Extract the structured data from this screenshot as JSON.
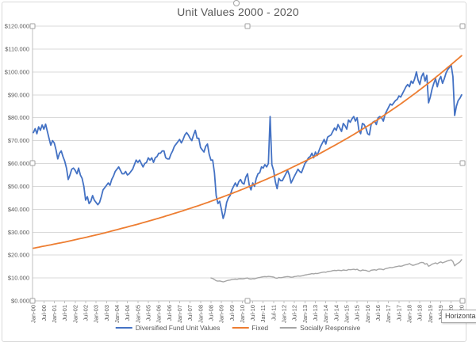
{
  "title": "Unit Values 2000 - 2020",
  "tooltip_text": "Horizontal",
  "colors": {
    "diversified": "#4472c4",
    "fixed": "#ed7d31",
    "socially_responsive": "#a5a5a5",
    "gridline": "#d9d9d9",
    "axis_line": "#bfbfbf",
    "axis_text": "#595959",
    "title_text": "#595959"
  },
  "y_axis": {
    "tick_labels": [
      "$120.000",
      "$110.000",
      "$100.000",
      "$90.000",
      "$80.000",
      "$70.000",
      "$60.000",
      "$50.000",
      "$40.000",
      "$30.000",
      "$20.000",
      "$10.000",
      "$0.000"
    ],
    "min": 0,
    "max": 120,
    "step": 10
  },
  "x_axis": {
    "tick_labels": [
      "Jan-00",
      "Jul-00",
      "Jan-01",
      "Jul-01",
      "Jan-02",
      "Jul-02",
      "Jan-03",
      "Jul-03",
      "Jan-04",
      "Jul-04",
      "Jan-05",
      "Jul-05",
      "Jan-06",
      "Jul-06",
      "Jan-07",
      "Jul-07",
      "Jan-08",
      "Jul-08",
      "Jan-09",
      "Jul-09",
      "Jan-10",
      "Jul-10",
      "Jan-11",
      "Jul-11",
      "Jan-12",
      "Jul-12",
      "Jan-13",
      "Jul-13",
      "Jan-14",
      "Jul-14",
      "Jan-15",
      "Jul-15",
      "Jan-16",
      "Jul-16",
      "Jan-17",
      "Jul-17",
      "Jan-18",
      "Jul-18",
      "Jan-19",
      "Jul-19",
      "Jan-20",
      "Jul-20"
    ],
    "months_per_tick": 6,
    "total_months": 247
  },
  "legend": [
    {
      "label": "Diversified Fund Unit Values",
      "color": "#4472c4"
    },
    {
      "label": "Fixed",
      "color": "#ed7d31"
    },
    {
      "label": "Socially Responsive",
      "color": "#a5a5a5"
    }
  ],
  "chart_data": {
    "type": "line",
    "x_unit": "month index, 0 = Jan-2000, 246 = Jul-2020",
    "title": "Unit Values 2000 - 2020",
    "ylim": [
      0,
      120
    ],
    "grid": true,
    "legend_position": "bottom",
    "series": [
      {
        "name": "Diversified Fund Unit Values",
        "color": "#4472c4",
        "start_month": 0,
        "resolution_months": 1,
        "values": [
          73.5,
          75.2,
          73.0,
          76.0,
          74.5,
          76.8,
          75.0,
          77.2,
          74.0,
          71.0,
          68.0,
          70.0,
          69.0,
          66.0,
          62.0,
          64.5,
          65.5,
          63.0,
          61.0,
          58.0,
          53.0,
          55.0,
          57.5,
          58.0,
          57.0,
          55.5,
          58.0,
          55.0,
          53.5,
          50.0,
          44.0,
          45.5,
          42.5,
          43.5,
          46.0,
          44.0,
          43.0,
          42.0,
          43.0,
          45.5,
          48.5,
          49.5,
          50.5,
          51.5,
          50.5,
          53.0,
          54.5,
          56.5,
          57.5,
          58.5,
          57.0,
          55.5,
          55.5,
          56.5,
          55.0,
          55.5,
          56.5,
          57.5,
          59.5,
          61.5,
          60.5,
          61.5,
          60.0,
          58.5,
          60.0,
          60.5,
          62.5,
          61.5,
          62.5,
          60.5,
          62.5,
          63.0,
          64.5,
          64.5,
          65.5,
          65.5,
          62.5,
          62.0,
          62.0,
          64.0,
          65.5,
          67.5,
          68.5,
          69.5,
          70.5,
          69.0,
          70.5,
          72.5,
          73.5,
          72.5,
          71.0,
          70.0,
          72.5,
          74.5,
          71.0,
          71.0,
          67.0,
          66.0,
          65.0,
          67.5,
          68.5,
          64.0,
          61.5,
          61.5,
          56.0,
          46.0,
          42.5,
          43.5,
          40.0,
          36.0,
          38.5,
          43.0,
          45.0,
          46.0,
          48.5,
          50.0,
          51.5,
          50.0,
          52.0,
          53.0,
          51.5,
          51.0,
          54.0,
          55.5,
          50.5,
          48.5,
          51.5,
          50.0,
          53.5,
          55.5,
          56.0,
          58.5,
          58.0,
          59.5,
          58.5,
          60.0,
          80.5,
          59.5,
          57.0,
          52.0,
          49.0,
          53.5,
          52.5,
          52.5,
          54.0,
          55.5,
          57.0,
          55.0,
          51.5,
          53.0,
          54.5,
          56.0,
          57.5,
          56.5,
          56.0,
          58.0,
          60.0,
          61.0,
          62.5,
          63.0,
          64.5,
          62.5,
          65.0,
          63.5,
          65.5,
          67.5,
          69.0,
          70.5,
          68.5,
          71.5,
          72.0,
          72.5,
          74.0,
          75.5,
          74.5,
          77.0,
          75.5,
          74.0,
          77.5,
          76.5,
          75.0,
          79.0,
          78.0,
          79.5,
          80.5,
          78.5,
          80.0,
          74.5,
          73.0,
          77.5,
          77.0,
          75.5,
          73.0,
          72.5,
          77.0,
          78.0,
          78.5,
          77.0,
          80.0,
          80.5,
          80.0,
          78.5,
          81.5,
          83.0,
          84.5,
          86.0,
          85.5,
          86.5,
          87.5,
          88.0,
          89.5,
          89.0,
          90.5,
          92.0,
          93.5,
          94.5,
          93.5,
          96.0,
          95.0,
          97.0,
          100.0,
          96.5,
          94.5,
          98.0,
          99.5,
          96.0,
          98.5,
          86.5,
          89.0,
          92.5,
          95.0,
          97.0,
          93.5,
          96.5,
          98.0,
          95.0,
          97.0,
          99.5,
          101.0,
          102.0,
          103.0,
          98.0,
          81.0,
          85.0,
          87.5,
          88.5,
          90.0
        ]
      },
      {
        "name": "Fixed",
        "color": "#ed7d31",
        "start_month": 0,
        "resolution_months": 6,
        "values": [
          23.0,
          23.9,
          24.8,
          25.7,
          26.7,
          27.7,
          28.8,
          29.9,
          31.1,
          32.3,
          33.5,
          34.8,
          36.1,
          37.5,
          38.9,
          40.4,
          41.9,
          43.5,
          45.2,
          46.9,
          48.7,
          50.6,
          52.5,
          54.5,
          56.6,
          58.8,
          61.0,
          63.3,
          65.8,
          68.3,
          70.9,
          73.6,
          76.4,
          79.3,
          82.4,
          85.5,
          88.8,
          92.2,
          95.7,
          99.4,
          103.2,
          107.1
        ]
      },
      {
        "name": "Socially Responsive",
        "color": "#a5a5a5",
        "start_month": 102,
        "resolution_months": 1,
        "values": [
          10.0,
          9.8,
          9.3,
          8.8,
          8.6,
          8.7,
          8.5,
          8.3,
          8.5,
          8.8,
          9.0,
          9.1,
          9.3,
          9.4,
          9.5,
          9.4,
          9.6,
          9.7,
          9.6,
          9.7,
          9.9,
          10.0,
          9.6,
          9.5,
          9.7,
          9.6,
          9.9,
          10.1,
          10.2,
          10.4,
          10.5,
          10.6,
          10.5,
          10.7,
          10.6,
          10.5,
          10.4,
          10.0,
          9.9,
          10.2,
          10.1,
          10.2,
          10.4,
          10.5,
          10.6,
          10.5,
          10.3,
          10.4,
          10.6,
          10.7,
          10.9,
          10.8,
          10.9,
          11.1,
          11.3,
          11.4,
          11.6,
          11.7,
          11.9,
          11.8,
          12.0,
          11.9,
          12.1,
          12.3,
          12.5,
          12.6,
          12.5,
          12.8,
          12.9,
          13.0,
          13.2,
          13.3,
          13.2,
          13.4,
          13.3,
          13.2,
          13.5,
          13.4,
          13.3,
          13.7,
          13.6,
          13.7,
          13.8,
          13.6,
          13.8,
          13.3,
          13.1,
          13.5,
          13.4,
          13.3,
          13.0,
          12.9,
          13.4,
          13.5,
          13.6,
          13.4,
          13.8,
          13.9,
          13.8,
          13.6,
          14.0,
          14.2,
          14.4,
          14.6,
          14.5,
          14.7,
          14.9,
          15.0,
          15.2,
          15.1,
          15.3,
          15.6,
          15.8,
          15.9,
          16.3,
          15.8,
          15.5,
          15.7,
          16.0,
          16.2,
          16.6,
          16.8,
          16.7,
          16.0,
          16.3,
          15.1,
          15.5,
          16.0,
          16.3,
          16.6,
          16.2,
          16.7,
          17.0,
          16.6,
          16.9,
          17.2,
          17.5,
          17.7,
          17.9,
          17.2,
          15.3,
          16.0,
          16.5,
          17.0,
          18.0
        ]
      }
    ]
  }
}
